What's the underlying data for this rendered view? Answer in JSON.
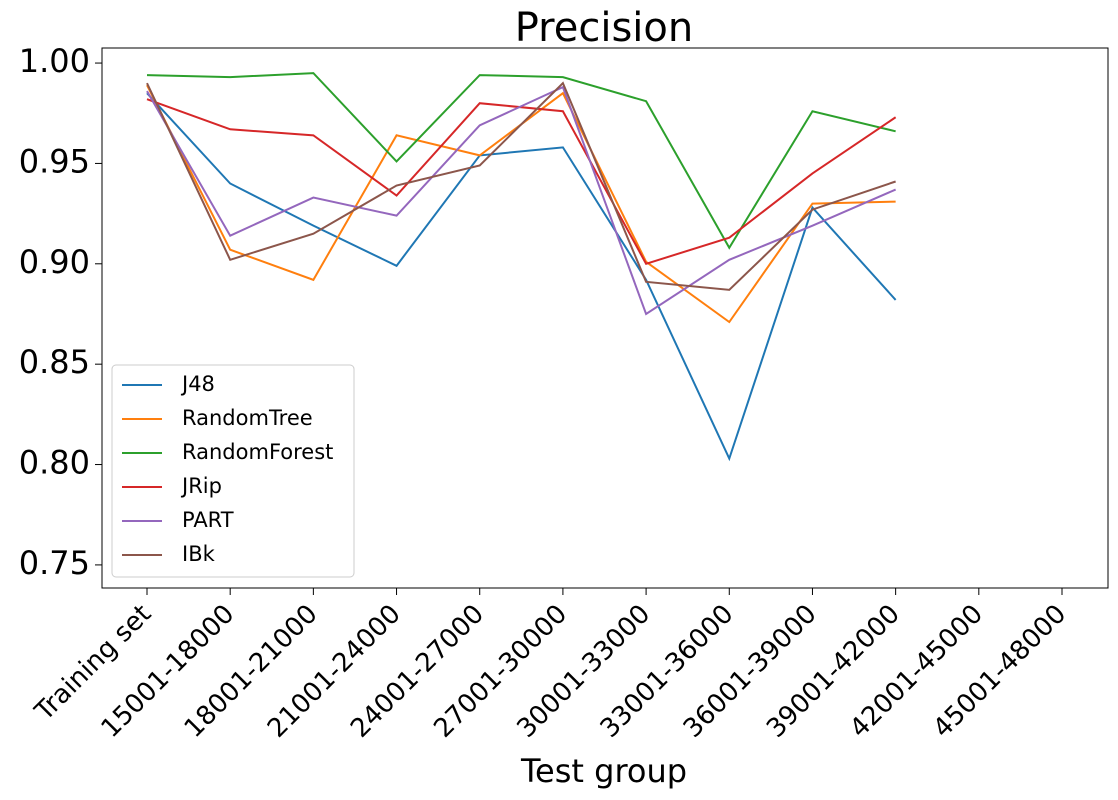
{
  "chart_data": {
    "type": "line",
    "title": "Precision",
    "xlabel": "Test group",
    "categories": [
      "Training set",
      "15001-18000",
      "18001-21000",
      "21001-24000",
      "24001-27000",
      "27001-30000",
      "30001-33000",
      "33001-36000",
      "36001-39000",
      "39001-42000",
      "42001-45000",
      "45001-48000"
    ],
    "series": [
      {
        "name": "J48",
        "color": "#1f77b4",
        "values": [
          0.985,
          0.94,
          0.919,
          0.899,
          0.954,
          0.958,
          0.892,
          0.803,
          0.928,
          0.882,
          null,
          null
        ]
      },
      {
        "name": "RandomTree",
        "color": "#ff7f0e",
        "values": [
          0.989,
          0.907,
          0.892,
          0.964,
          0.954,
          0.985,
          0.901,
          0.871,
          0.93,
          0.931,
          null,
          null
        ]
      },
      {
        "name": "RandomForest",
        "color": "#2ca02c",
        "values": [
          0.994,
          0.993,
          0.995,
          0.951,
          0.994,
          0.993,
          0.981,
          0.908,
          0.976,
          0.966,
          null,
          null
        ]
      },
      {
        "name": "JRip",
        "color": "#d62728",
        "values": [
          0.982,
          0.967,
          0.964,
          0.934,
          0.98,
          0.976,
          0.9,
          0.913,
          0.945,
          0.973,
          null,
          null
        ]
      },
      {
        "name": "PART",
        "color": "#9467bd",
        "values": [
          0.986,
          0.914,
          0.933,
          0.924,
          0.969,
          0.988,
          0.875,
          0.902,
          0.919,
          0.937,
          null,
          null
        ]
      },
      {
        "name": "IBk",
        "color": "#8c564b",
        "values": [
          0.99,
          0.902,
          0.915,
          0.939,
          0.949,
          0.99,
          0.891,
          0.887,
          0.927,
          0.941,
          null,
          null
        ]
      }
    ],
    "ylim": [
      0.7385,
      1.0075
    ],
    "yticks": [
      0.75,
      {
        "value": 0.8,
        "label": "0.80"
      },
      0.85,
      {
        "value": 0.9,
        "label": "0.90"
      },
      0.95,
      {
        "value": 1,
        "label": "1.00"
      }
    ],
    "grid": false,
    "legend": "lower left"
  }
}
